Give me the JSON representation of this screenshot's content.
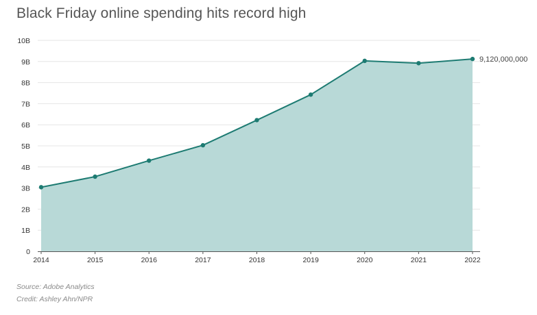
{
  "title": "Black Friday online spending hits record high",
  "footer": {
    "source": "Source: Adobe Analytics",
    "credit": "Credit: Ashley Ahn/NPR"
  },
  "colors": {
    "line": "#1d7b72",
    "fill": "#b8d9d7",
    "grid": "#e6e6e6",
    "axis": "#555555"
  },
  "chart_data": {
    "type": "area",
    "title": "Black Friday online spending hits record high",
    "xlabel": "",
    "ylabel": "",
    "x": [
      2014,
      2015,
      2016,
      2017,
      2018,
      2019,
      2020,
      2021,
      2022
    ],
    "x_tick_labels": [
      "2014",
      "2015",
      "2016",
      "2017",
      "2018",
      "2019",
      "2020",
      "2021",
      "2022"
    ],
    "values": [
      3040000000,
      3540000000,
      4300000000,
      5030000000,
      6220000000,
      7430000000,
      9030000000,
      8920000000,
      9120000000
    ],
    "ylim": [
      0,
      10000000000
    ],
    "y_ticks": [
      0,
      1000000000,
      2000000000,
      3000000000,
      4000000000,
      5000000000,
      6000000000,
      7000000000,
      8000000000,
      9000000000,
      10000000000
    ],
    "y_tick_labels": [
      "0",
      "1B",
      "2B",
      "3B",
      "4B",
      "5B",
      "6B",
      "7B",
      "8B",
      "9B",
      "10B"
    ],
    "grid": true,
    "annotations": [
      {
        "index": 8,
        "text": "9,120,000,000"
      }
    ]
  }
}
